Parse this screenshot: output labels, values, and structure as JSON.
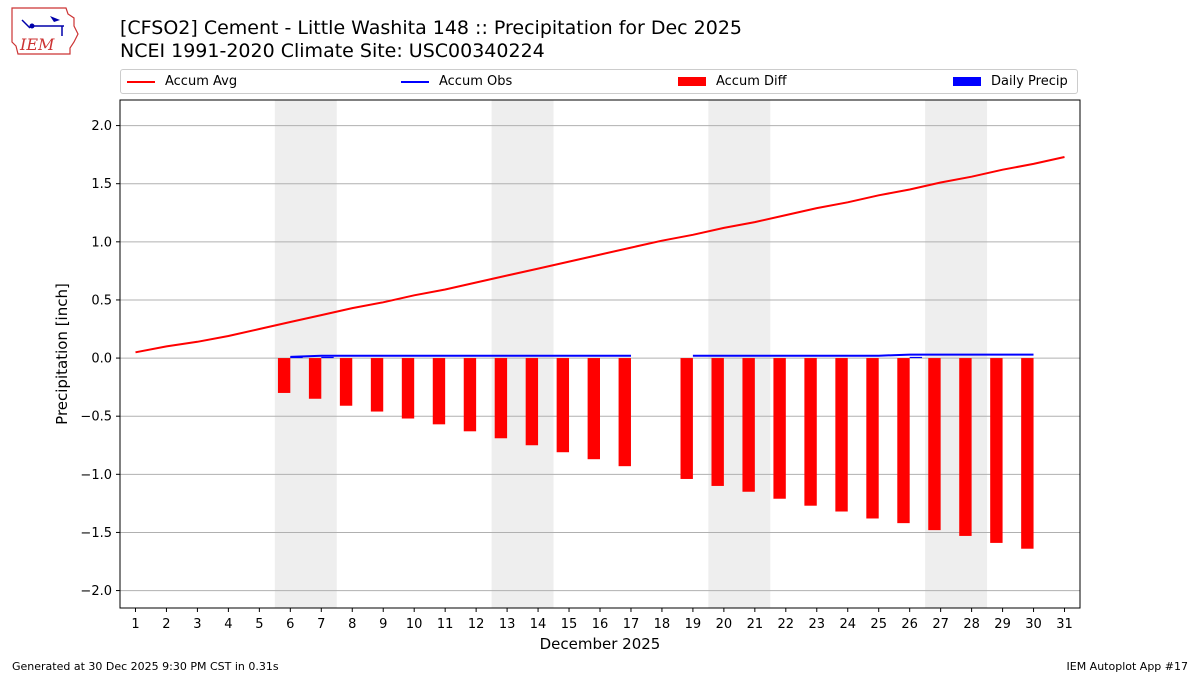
{
  "header": {
    "logo_text": "IEM",
    "title_line1": "[CFSO2] Cement - Little Washita 148 :: Precipitation for Dec 2025",
    "title_line2": "NCEI 1991-2020 Climate Site: USC00340224"
  },
  "footer": {
    "left": "Generated at 30 Dec 2025 9:30 PM CST in 0.31s",
    "right": "IEM Autoplot App #17"
  },
  "chart_data": {
    "type": "bar",
    "xlabel": "December 2025",
    "ylabel": "Precipitation [inch]",
    "xlim": [
      0.5,
      31.5
    ],
    "ylim": [
      -2.15,
      2.22
    ],
    "yticks": [
      -2.0,
      -1.5,
      -1.0,
      -0.5,
      0.0,
      0.5,
      1.0,
      1.5,
      2.0
    ],
    "ytick_labels": [
      "−2.0",
      "−1.5",
      "−1.0",
      "−0.5",
      "0.0",
      "0.5",
      "1.0",
      "1.5",
      "2.0"
    ],
    "xticks": [
      1,
      2,
      3,
      4,
      5,
      6,
      7,
      8,
      9,
      10,
      11,
      12,
      13,
      14,
      15,
      16,
      17,
      18,
      19,
      20,
      21,
      22,
      23,
      24,
      25,
      26,
      27,
      28,
      29,
      30,
      31
    ],
    "grid": "horizontal",
    "legend_position": "top",
    "weekend_shading": [
      [
        5.5,
        7.5
      ],
      [
        12.5,
        14.5
      ],
      [
        19.5,
        21.5
      ],
      [
        26.5,
        28.5
      ]
    ],
    "colors": {
      "accum_avg": "#ff0000",
      "accum_obs": "#0000ff",
      "accum_diff": "#ff0000",
      "daily_precip": "#0000ff",
      "weekend": "#eeeeee",
      "grid": "#b0b0b0"
    },
    "series": [
      {
        "name": "Accum Avg",
        "type": "line",
        "x": [
          1,
          2,
          3,
          4,
          5,
          6,
          7,
          8,
          9,
          10,
          11,
          12,
          13,
          14,
          15,
          16,
          17,
          18,
          19,
          20,
          21,
          22,
          23,
          24,
          25,
          26,
          27,
          28,
          29,
          30,
          31
        ],
        "values": [
          0.05,
          0.1,
          0.14,
          0.19,
          0.25,
          0.31,
          0.37,
          0.43,
          0.48,
          0.54,
          0.59,
          0.65,
          0.71,
          0.77,
          0.83,
          0.89,
          0.95,
          1.01,
          1.06,
          1.12,
          1.17,
          1.23,
          1.29,
          1.34,
          1.4,
          1.45,
          1.51,
          1.56,
          1.62,
          1.67,
          1.73
        ]
      },
      {
        "name": "Accum Obs",
        "type": "line",
        "x": [
          6,
          7,
          8,
          9,
          10,
          11,
          12,
          13,
          14,
          15,
          16,
          17,
          null,
          19,
          20,
          21,
          22,
          23,
          24,
          25,
          26,
          27,
          28,
          29,
          30
        ],
        "values": [
          0.01,
          0.02,
          0.02,
          0.02,
          0.02,
          0.02,
          0.02,
          0.02,
          0.02,
          0.02,
          0.02,
          0.02,
          null,
          0.02,
          0.02,
          0.02,
          0.02,
          0.02,
          0.02,
          0.02,
          0.03,
          0.03,
          0.03,
          0.03,
          0.03
        ]
      },
      {
        "name": "Accum Diff",
        "type": "bar",
        "x": [
          6,
          7,
          8,
          9,
          10,
          11,
          12,
          13,
          14,
          15,
          16,
          17,
          19,
          20,
          21,
          22,
          23,
          24,
          25,
          26,
          27,
          28,
          29,
          30
        ],
        "values": [
          -0.3,
          -0.35,
          -0.41,
          -0.46,
          -0.52,
          -0.57,
          -0.63,
          -0.69,
          -0.75,
          -0.81,
          -0.87,
          -0.93,
          -1.04,
          -1.1,
          -1.15,
          -1.21,
          -1.27,
          -1.32,
          -1.38,
          -1.42,
          -1.48,
          -1.53,
          -1.59,
          -1.64
        ]
      },
      {
        "name": "Daily Precip",
        "type": "bar",
        "x": [
          6,
          7,
          26
        ],
        "values": [
          0.01,
          0.01,
          0.01
        ]
      }
    ]
  }
}
